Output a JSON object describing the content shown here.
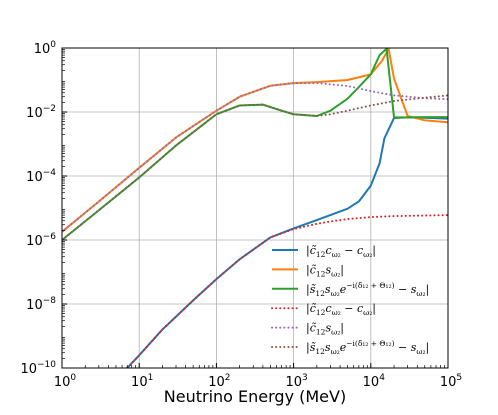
{
  "chart_data": {
    "type": "line",
    "title": "",
    "xlabel": "Neutrino Energy (MeV)",
    "ylabel": "",
    "xscale": "log",
    "yscale": "log",
    "xlim": [
      1,
      100000
    ],
    "ylim": [
      1e-10,
      1
    ],
    "grid": true,
    "legend_position": "lower-right",
    "x_ticks": [
      {
        "value": 1,
        "base": "10",
        "exp": "0"
      },
      {
        "value": 10,
        "base": "10",
        "exp": "1"
      },
      {
        "value": 100,
        "base": "10",
        "exp": "2"
      },
      {
        "value": 1000,
        "base": "10",
        "exp": "3"
      },
      {
        "value": 10000,
        "base": "10",
        "exp": "4"
      },
      {
        "value": 100000,
        "base": "10",
        "exp": "5"
      }
    ],
    "y_ticks": [
      {
        "value": 1e-10,
        "base": "10",
        "exp": "−10"
      },
      {
        "value": 1e-08,
        "base": "10",
        "exp": "−8"
      },
      {
        "value": 1e-06,
        "base": "10",
        "exp": "−6"
      },
      {
        "value": 0.0001,
        "base": "10",
        "exp": "−4"
      },
      {
        "value": 0.01,
        "base": "10",
        "exp": "−2"
      },
      {
        "value": 1,
        "base": "10",
        "exp": "0"
      }
    ],
    "series": [
      {
        "name": "|c̃12cω2 − cω2|",
        "color": "#1f77b4",
        "style": "solid",
        "x": [
          7,
          10,
          20,
          50,
          100,
          200,
          500,
          1000,
          2000,
          3000,
          5000,
          7000,
          10000,
          13000,
          15000,
          20000,
          30000,
          50000,
          100000
        ],
        "y": [
          1e-10,
          2.5e-10,
          1.6e-09,
          1.3e-08,
          6e-08,
          2.5e-07,
          1.2e-06,
          2.3e-06,
          4.2e-06,
          6e-06,
          9.5e-06,
          1.6e-05,
          5e-05,
          0.00025,
          0.0015,
          0.0065,
          0.0068,
          0.0066,
          0.0062
        ]
      },
      {
        "name": "|c̃12sω2|",
        "color": "#ff7f0e",
        "style": "solid",
        "x": [
          1,
          3,
          10,
          30,
          100,
          200,
          500,
          1000,
          2000,
          5000,
          10000,
          14000,
          17000,
          20000,
          30000,
          50000,
          100000
        ],
        "y": [
          1.8e-06,
          1.6e-05,
          0.00018,
          0.0016,
          0.011,
          0.03,
          0.066,
          0.08,
          0.086,
          0.1,
          0.15,
          0.4,
          0.95,
          0.11,
          0.0075,
          0.0055,
          0.0048
        ]
      },
      {
        "name": "|s̃12sω2e^{−i(δ̃12+Θ12)} − sω2|",
        "color": "#2ca02c",
        "style": "solid",
        "x": [
          1,
          3,
          10,
          30,
          100,
          200,
          400,
          700,
          1000,
          2000,
          3000,
          5000,
          7000,
          10000,
          13000,
          16000,
          20000,
          30000,
          50000,
          100000
        ],
        "y": [
          1e-06,
          8.5e-06,
          9e-05,
          0.0009,
          0.0085,
          0.016,
          0.017,
          0.011,
          0.0085,
          0.0075,
          0.011,
          0.026,
          0.06,
          0.15,
          0.6,
          0.95,
          0.0068,
          0.0068,
          0.0069,
          0.0069
        ]
      },
      {
        "name": "|c̃12cω2 − cω2|",
        "color": "#d62728",
        "style": "dotted",
        "x": [
          7,
          10,
          20,
          50,
          100,
          200,
          500,
          1000,
          2000,
          3000,
          5000,
          10000,
          20000,
          50000,
          100000
        ],
        "y": [
          1e-10,
          2.5e-10,
          1.6e-09,
          1.3e-08,
          6e-08,
          2.5e-07,
          1.2e-06,
          2.2e-06,
          3.2e-06,
          3.8e-06,
          4.5e-06,
          5.2e-06,
          5.6e-06,
          5.8e-06,
          6e-06
        ]
      },
      {
        "name": "|c̃12sω2|",
        "color": "#9467bd",
        "style": "dotted",
        "x": [
          1,
          3,
          10,
          30,
          100,
          200,
          500,
          1000,
          2000,
          5000,
          10000,
          20000,
          50000,
          100000
        ],
        "y": [
          1.8e-06,
          1.6e-05,
          0.00018,
          0.0016,
          0.011,
          0.03,
          0.066,
          0.08,
          0.08,
          0.065,
          0.045,
          0.033,
          0.027,
          0.025
        ]
      },
      {
        "name": "|s̃12sω2e^{−i(δ̃12+Θ12)} − sω2|",
        "color": "#8c564b",
        "style": "dotted",
        "x": [
          1,
          3,
          10,
          30,
          100,
          200,
          400,
          700,
          1000,
          2000,
          3000,
          5000,
          10000,
          20000,
          50000,
          100000
        ],
        "y": [
          1e-06,
          8.5e-06,
          9e-05,
          0.0009,
          0.0085,
          0.016,
          0.017,
          0.011,
          0.0085,
          0.0075,
          0.0085,
          0.011,
          0.016,
          0.022,
          0.028,
          0.033
        ]
      }
    ]
  }
}
